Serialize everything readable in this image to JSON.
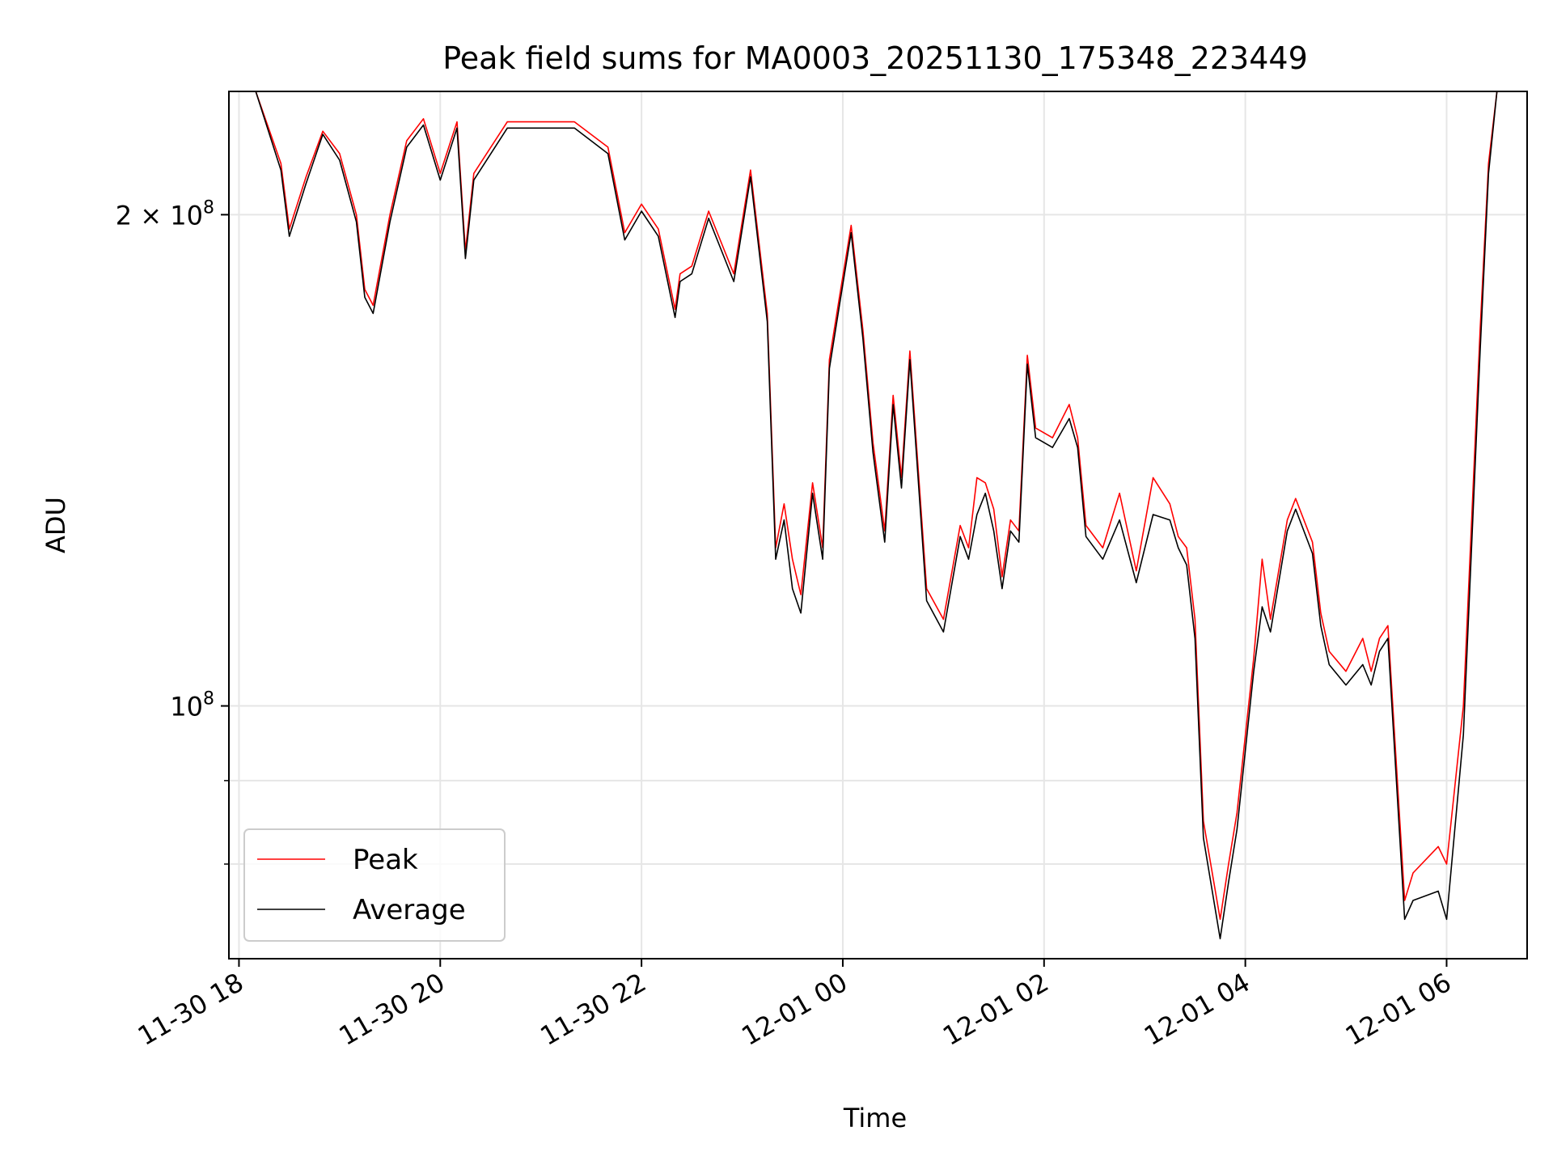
{
  "chart_data": {
    "type": "line",
    "title": "Peak field sums for MA0003_20251130_175348_223449",
    "xlabel": "Time",
    "ylabel": "ADU",
    "y_scale": "log",
    "ylim": [
      70000000,
      238000000
    ],
    "xlim": [
      "2025-11-30 17:54",
      "2025-12-01 06:48"
    ],
    "grid": true,
    "legend_position": "lower-left",
    "x_ticks": [
      {
        "t": "2025-11-30 18:00",
        "label": "11-30 18"
      },
      {
        "t": "2025-11-30 20:00",
        "label": "11-30 20"
      },
      {
        "t": "2025-11-30 22:00",
        "label": "11-30 22"
      },
      {
        "t": "2025-12-01 00:00",
        "label": "12-01 00"
      },
      {
        "t": "2025-12-01 02:00",
        "label": "12-01 02"
      },
      {
        "t": "2025-12-01 04:00",
        "label": "12-01 04"
      },
      {
        "t": "2025-12-01 06:00",
        "label": "12-01 06"
      }
    ],
    "y_major_ticks": [
      {
        "value": 100000000,
        "base": "10",
        "exp": "8",
        "label": "10^8"
      },
      {
        "value": 200000000,
        "coef": "2 × ",
        "base": "10",
        "exp": "8",
        "label": "2 × 10^8"
      }
    ],
    "y_minor_ticks": [
      80000000,
      90000000
    ],
    "series": [
      {
        "name": "Peak",
        "color": "#ff0000",
        "x": [
          "2025-11-30 17:54",
          "2025-11-30 18:10",
          "2025-11-30 18:25",
          "2025-11-30 18:30",
          "2025-11-30 18:40",
          "2025-11-30 18:50",
          "2025-11-30 19:00",
          "2025-11-30 19:10",
          "2025-11-30 19:15",
          "2025-11-30 19:20",
          "2025-11-30 19:30",
          "2025-11-30 19:40",
          "2025-11-30 19:50",
          "2025-11-30 20:00",
          "2025-11-30 20:10",
          "2025-11-30 20:15",
          "2025-11-30 20:20",
          "2025-11-30 20:40",
          "2025-11-30 21:00",
          "2025-11-30 21:20",
          "2025-11-30 21:40",
          "2025-11-30 21:50",
          "2025-11-30 22:00",
          "2025-11-30 22:10",
          "2025-11-30 22:20",
          "2025-11-30 22:23",
          "2025-11-30 22:30",
          "2025-11-30 22:40",
          "2025-11-30 22:55",
          "2025-11-30 23:05",
          "2025-11-30 23:15",
          "2025-11-30 23:20",
          "2025-11-30 23:25",
          "2025-11-30 23:30",
          "2025-11-30 23:35",
          "2025-11-30 23:42",
          "2025-11-30 23:48",
          "2025-11-30 23:52",
          "2025-11-30 23:58",
          "2025-12-01 00:05",
          "2025-12-01 00:12",
          "2025-12-01 00:18",
          "2025-12-01 00:25",
          "2025-12-01 00:30",
          "2025-12-01 00:35",
          "2025-12-01 00:40",
          "2025-12-01 00:50",
          "2025-12-01 01:00",
          "2025-12-01 01:10",
          "2025-12-01 01:15",
          "2025-12-01 01:20",
          "2025-12-01 01:25",
          "2025-12-01 01:30",
          "2025-12-01 01:35",
          "2025-12-01 01:40",
          "2025-12-01 01:45",
          "2025-12-01 01:50",
          "2025-12-01 01:55",
          "2025-12-01 02:05",
          "2025-12-01 02:15",
          "2025-12-01 02:20",
          "2025-12-01 02:25",
          "2025-12-01 02:35",
          "2025-12-01 02:45",
          "2025-12-01 02:55",
          "2025-12-01 03:05",
          "2025-12-01 03:15",
          "2025-12-01 03:20",
          "2025-12-01 03:25",
          "2025-12-01 03:30",
          "2025-12-01 03:35",
          "2025-12-01 03:45",
          "2025-12-01 03:50",
          "2025-12-01 03:55",
          "2025-12-01 04:05",
          "2025-12-01 04:10",
          "2025-12-01 04:15",
          "2025-12-01 04:25",
          "2025-12-01 04:30",
          "2025-12-01 04:40",
          "2025-12-01 04:45",
          "2025-12-01 04:50",
          "2025-12-01 05:00",
          "2025-12-01 05:10",
          "2025-12-01 05:15",
          "2025-12-01 05:20",
          "2025-12-01 05:25",
          "2025-12-01 05:35",
          "2025-12-01 05:40",
          "2025-12-01 05:55",
          "2025-12-01 06:00",
          "2025-12-01 06:10",
          "2025-12-01 06:20",
          "2025-12-01 06:25",
          "2025-12-01 06:30",
          "2025-12-01 06:48"
        ],
        "y": [
          238000000,
          238000000,
          215000000,
          196000000,
          211000000,
          225000000,
          218000000,
          200000000,
          180000000,
          176000000,
          200000000,
          222000000,
          229000000,
          212000000,
          228000000,
          190000000,
          212000000,
          228000000,
          228000000,
          228000000,
          220000000,
          195000000,
          203000000,
          196000000,
          175000000,
          184000000,
          186000000,
          201000000,
          184000000,
          213000000,
          174000000,
          125000000,
          133000000,
          123000000,
          117000000,
          137000000,
          125000000,
          163000000,
          178000000,
          197000000,
          170000000,
          145000000,
          128000000,
          155000000,
          138000000,
          165000000,
          118000000,
          113000000,
          129000000,
          125000000,
          138000000,
          137000000,
          132000000,
          120000000,
          130000000,
          128000000,
          164000000,
          148000000,
          146000000,
          153000000,
          146000000,
          129000000,
          125000000,
          135000000,
          121000000,
          138000000,
          133000000,
          127000000,
          125000000,
          113000000,
          85000000,
          74000000,
          80000000,
          86000000,
          107000000,
          123000000,
          113000000,
          130000000,
          134000000,
          126000000,
          114000000,
          108000000,
          105000000,
          110000000,
          105000000,
          110000000,
          112000000,
          76000000,
          79000000,
          82000000,
          80000000,
          100000000,
          170000000,
          215000000,
          238000000,
          238000000
        ]
      },
      {
        "name": "Average",
        "color": "#000000",
        "x": [
          "2025-11-30 17:54",
          "2025-11-30 18:10",
          "2025-11-30 18:25",
          "2025-11-30 18:30",
          "2025-11-30 18:40",
          "2025-11-30 18:50",
          "2025-11-30 19:00",
          "2025-11-30 19:10",
          "2025-11-30 19:15",
          "2025-11-30 19:20",
          "2025-11-30 19:30",
          "2025-11-30 19:40",
          "2025-11-30 19:50",
          "2025-11-30 20:00",
          "2025-11-30 20:10",
          "2025-11-30 20:15",
          "2025-11-30 20:20",
          "2025-11-30 20:40",
          "2025-11-30 21:00",
          "2025-11-30 21:20",
          "2025-11-30 21:40",
          "2025-11-30 21:50",
          "2025-11-30 22:00",
          "2025-11-30 22:10",
          "2025-11-30 22:20",
          "2025-11-30 22:23",
          "2025-11-30 22:30",
          "2025-11-30 22:40",
          "2025-11-30 22:55",
          "2025-11-30 23:05",
          "2025-11-30 23:15",
          "2025-11-30 23:20",
          "2025-11-30 23:25",
          "2025-11-30 23:30",
          "2025-11-30 23:35",
          "2025-11-30 23:42",
          "2025-11-30 23:48",
          "2025-11-30 23:52",
          "2025-11-30 23:58",
          "2025-12-01 00:05",
          "2025-12-01 00:12",
          "2025-12-01 00:18",
          "2025-12-01 00:25",
          "2025-12-01 00:30",
          "2025-12-01 00:35",
          "2025-12-01 00:40",
          "2025-12-01 00:50",
          "2025-12-01 01:00",
          "2025-12-01 01:10",
          "2025-12-01 01:15",
          "2025-12-01 01:20",
          "2025-12-01 01:25",
          "2025-12-01 01:30",
          "2025-12-01 01:35",
          "2025-12-01 01:40",
          "2025-12-01 01:45",
          "2025-12-01 01:50",
          "2025-12-01 01:55",
          "2025-12-01 02:05",
          "2025-12-01 02:15",
          "2025-12-01 02:20",
          "2025-12-01 02:25",
          "2025-12-01 02:35",
          "2025-12-01 02:45",
          "2025-12-01 02:55",
          "2025-12-01 03:05",
          "2025-12-01 03:15",
          "2025-12-01 03:20",
          "2025-12-01 03:25",
          "2025-12-01 03:30",
          "2025-12-01 03:35",
          "2025-12-01 03:45",
          "2025-12-01 03:50",
          "2025-12-01 03:55",
          "2025-12-01 04:05",
          "2025-12-01 04:10",
          "2025-12-01 04:15",
          "2025-12-01 04:25",
          "2025-12-01 04:30",
          "2025-12-01 04:40",
          "2025-12-01 04:45",
          "2025-12-01 04:50",
          "2025-12-01 05:00",
          "2025-12-01 05:10",
          "2025-12-01 05:15",
          "2025-12-01 05:20",
          "2025-12-01 05:25",
          "2025-12-01 05:35",
          "2025-12-01 05:40",
          "2025-12-01 05:55",
          "2025-12-01 06:00",
          "2025-12-01 06:10",
          "2025-12-01 06:20",
          "2025-12-01 06:25",
          "2025-12-01 06:30",
          "2025-12-01 06:48"
        ],
        "y": [
          238000000,
          238000000,
          213000000,
          194000000,
          209000000,
          224000000,
          216000000,
          198000000,
          178000000,
          174000000,
          198000000,
          220000000,
          227000000,
          210000000,
          226000000,
          188000000,
          210000000,
          226000000,
          226000000,
          226000000,
          218000000,
          193000000,
          201000000,
          194000000,
          173000000,
          182000000,
          184000000,
          199000000,
          182000000,
          211000000,
          172000000,
          123000000,
          130000000,
          118000000,
          114000000,
          135000000,
          123000000,
          161000000,
          176000000,
          195000000,
          168000000,
          143000000,
          126000000,
          153000000,
          136000000,
          163000000,
          116000000,
          111000000,
          127000000,
          123000000,
          131000000,
          135000000,
          128000000,
          118000000,
          128000000,
          126000000,
          162000000,
          146000000,
          144000000,
          150000000,
          144000000,
          127000000,
          123000000,
          130000000,
          119000000,
          131000000,
          130000000,
          125000000,
          122000000,
          110000000,
          83000000,
          72000000,
          78000000,
          84000000,
          105000000,
          115000000,
          111000000,
          128000000,
          132000000,
          124000000,
          112000000,
          106000000,
          103000000,
          106000000,
          103000000,
          108000000,
          110000000,
          74000000,
          76000000,
          77000000,
          74000000,
          96000000,
          165000000,
          212000000,
          238000000,
          238000000
        ]
      }
    ]
  }
}
